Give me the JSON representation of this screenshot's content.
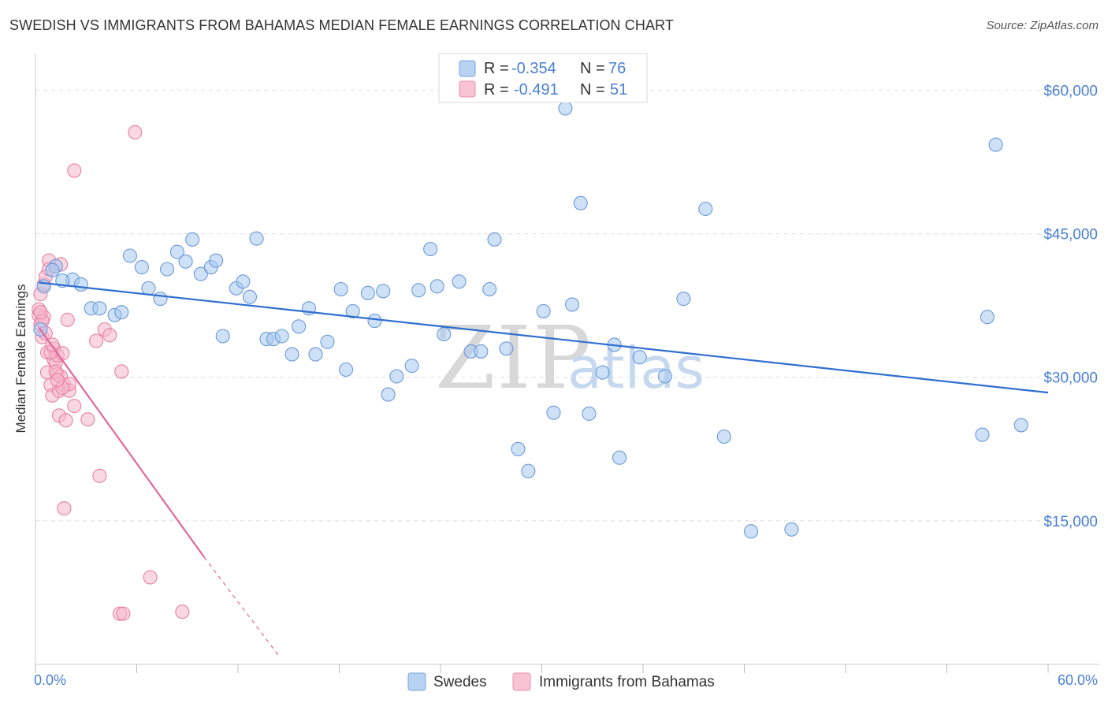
{
  "title": "SWEDISH VS IMMIGRANTS FROM BAHAMAS MEDIAN FEMALE EARNINGS CORRELATION CHART",
  "source": "Source: ZipAtlas.com",
  "watermark": {
    "zip": "ZIP",
    "atlas": "atlas"
  },
  "legend": {
    "r_label": "R =",
    "n_label": "N =",
    "series": [
      {
        "r": "-0.354",
        "n": "76"
      },
      {
        "r": "-0.491",
        "n": "51"
      }
    ]
  },
  "colors": {
    "swedes_fill": "#a8c8f0",
    "swedes_stroke": "#6a9ad8",
    "swedes_line": "#2f6fd0",
    "bahamas_fill": "#f6b8cc",
    "bahamas_stroke": "#e87fa2",
    "bahamas_line": "#e0689a"
  },
  "chart_data": {
    "type": "scatter",
    "title": "SWEDISH VS IMMIGRANTS FROM BAHAMAS MEDIAN FEMALE EARNINGS CORRELATION CHART",
    "xlabel": "",
    "ylabel": "Median Female Earnings",
    "xlim": [
      0,
      60
    ],
    "ylim": [
      0,
      63000
    ],
    "x_tick_labels": [
      "0.0%",
      "60.0%"
    ],
    "y_ticks": [
      15000,
      30000,
      45000,
      60000
    ],
    "y_tick_labels": [
      "$15,000",
      "$30,000",
      "$45,000",
      "$60,000"
    ],
    "grid": true,
    "legend_position": "top-center",
    "series": [
      {
        "name": "Swedes",
        "trend": {
          "x0": 0.2,
          "y0": 39900,
          "x1": 60,
          "y1": 28400
        },
        "points": [
          [
            0.5,
            39500
          ],
          [
            1.2,
            41600
          ],
          [
            2.2,
            40200
          ],
          [
            2.7,
            39700
          ],
          [
            3.3,
            37200
          ],
          [
            3.8,
            37200
          ],
          [
            4.7,
            36500
          ],
          [
            5.1,
            36800
          ],
          [
            6.3,
            41500
          ],
          [
            6.7,
            39300
          ],
          [
            7.4,
            38200
          ],
          [
            7.8,
            41300
          ],
          [
            8.4,
            43100
          ],
          [
            8.9,
            42100
          ],
          [
            9.3,
            44400
          ],
          [
            9.8,
            40800
          ],
          [
            10.4,
            41500
          ],
          [
            10.7,
            42200
          ],
          [
            11.1,
            34300
          ],
          [
            11.9,
            39300
          ],
          [
            12.3,
            40000
          ],
          [
            12.7,
            38400
          ],
          [
            13.1,
            44500
          ],
          [
            13.7,
            34000
          ],
          [
            14.1,
            34000
          ],
          [
            14.6,
            34300
          ],
          [
            15.2,
            32400
          ],
          [
            15.6,
            35300
          ],
          [
            16.2,
            37200
          ],
          [
            16.6,
            32400
          ],
          [
            17.3,
            33700
          ],
          [
            18.1,
            39200
          ],
          [
            18.4,
            30800
          ],
          [
            18.8,
            36900
          ],
          [
            19.7,
            38800
          ],
          [
            20.1,
            35900
          ],
          [
            20.6,
            39000
          ],
          [
            20.9,
            28200
          ],
          [
            21.4,
            30100
          ],
          [
            22.3,
            31200
          ],
          [
            22.7,
            39100
          ],
          [
            23.4,
            43400
          ],
          [
            23.8,
            39500
          ],
          [
            24.2,
            34500
          ],
          [
            25.1,
            40000
          ],
          [
            25.8,
            32700
          ],
          [
            26.4,
            32700
          ],
          [
            26.9,
            39200
          ],
          [
            27.2,
            44400
          ],
          [
            27.9,
            33000
          ],
          [
            28.6,
            22500
          ],
          [
            29.2,
            20200
          ],
          [
            30.1,
            36900
          ],
          [
            30.7,
            26300
          ],
          [
            31.4,
            58100
          ],
          [
            31.8,
            37600
          ],
          [
            32.3,
            48200
          ],
          [
            32.8,
            26200
          ],
          [
            33.6,
            30500
          ],
          [
            34.3,
            33400
          ],
          [
            34.6,
            21600
          ],
          [
            35.8,
            32100
          ],
          [
            37.3,
            30100
          ],
          [
            38.4,
            38200
          ],
          [
            39.7,
            47600
          ],
          [
            40.8,
            23800
          ],
          [
            42.4,
            13900
          ],
          [
            44.8,
            14100
          ],
          [
            56.1,
            24000
          ],
          [
            56.4,
            36300
          ],
          [
            56.9,
            54300
          ],
          [
            58.4,
            25000
          ],
          [
            0.3,
            35000
          ],
          [
            1.0,
            41200
          ],
          [
            1.6,
            40100
          ],
          [
            5.6,
            42700
          ]
        ]
      },
      {
        "name": "Immigrants from Bahamas",
        "trend": {
          "x0": 0.2,
          "y0": 35200,
          "x1": 10.0,
          "y1": 11200
        },
        "trend_extension": {
          "x0": 10.0,
          "y0": 11200,
          "x1": 14.5,
          "y1": 700
        },
        "points": [
          [
            0.2,
            36500
          ],
          [
            0.3,
            35500
          ],
          [
            0.3,
            38700
          ],
          [
            0.4,
            34200
          ],
          [
            0.5,
            39700
          ],
          [
            0.5,
            36300
          ],
          [
            0.6,
            40500
          ],
          [
            0.7,
            32600
          ],
          [
            0.7,
            30500
          ],
          [
            0.8,
            42200
          ],
          [
            0.8,
            41300
          ],
          [
            0.9,
            29200
          ],
          [
            1.0,
            28100
          ],
          [
            1.1,
            33000
          ],
          [
            1.1,
            31800
          ],
          [
            1.2,
            31500
          ],
          [
            1.3,
            32300
          ],
          [
            1.3,
            30300
          ],
          [
            1.4,
            26000
          ],
          [
            1.4,
            28600
          ],
          [
            1.5,
            41800
          ],
          [
            1.5,
            30100
          ],
          [
            1.6,
            32500
          ],
          [
            1.7,
            29200
          ],
          [
            1.7,
            16300
          ],
          [
            1.8,
            25500
          ],
          [
            1.9,
            36000
          ],
          [
            2.0,
            28600
          ],
          [
            2.0,
            29300
          ],
          [
            2.3,
            51600
          ],
          [
            2.3,
            27000
          ],
          [
            3.1,
            25600
          ],
          [
            3.6,
            33800
          ],
          [
            3.8,
            19700
          ],
          [
            4.1,
            35000
          ],
          [
            4.4,
            34400
          ],
          [
            5.1,
            30600
          ],
          [
            5.9,
            55600
          ],
          [
            6.8,
            9100
          ],
          [
            8.7,
            5500
          ],
          [
            5.0,
            5300
          ],
          [
            5.2,
            5300
          ],
          [
            0.2,
            37100
          ],
          [
            0.4,
            35900
          ],
          [
            0.9,
            32600
          ],
          [
            1.2,
            30600
          ],
          [
            1.6,
            28900
          ],
          [
            0.6,
            34600
          ],
          [
            1.0,
            33400
          ],
          [
            1.3,
            29700
          ],
          [
            0.3,
            36800
          ]
        ]
      }
    ]
  },
  "bottom_legend": [
    {
      "label": "Swedes"
    },
    {
      "label": "Immigrants from Bahamas"
    }
  ]
}
